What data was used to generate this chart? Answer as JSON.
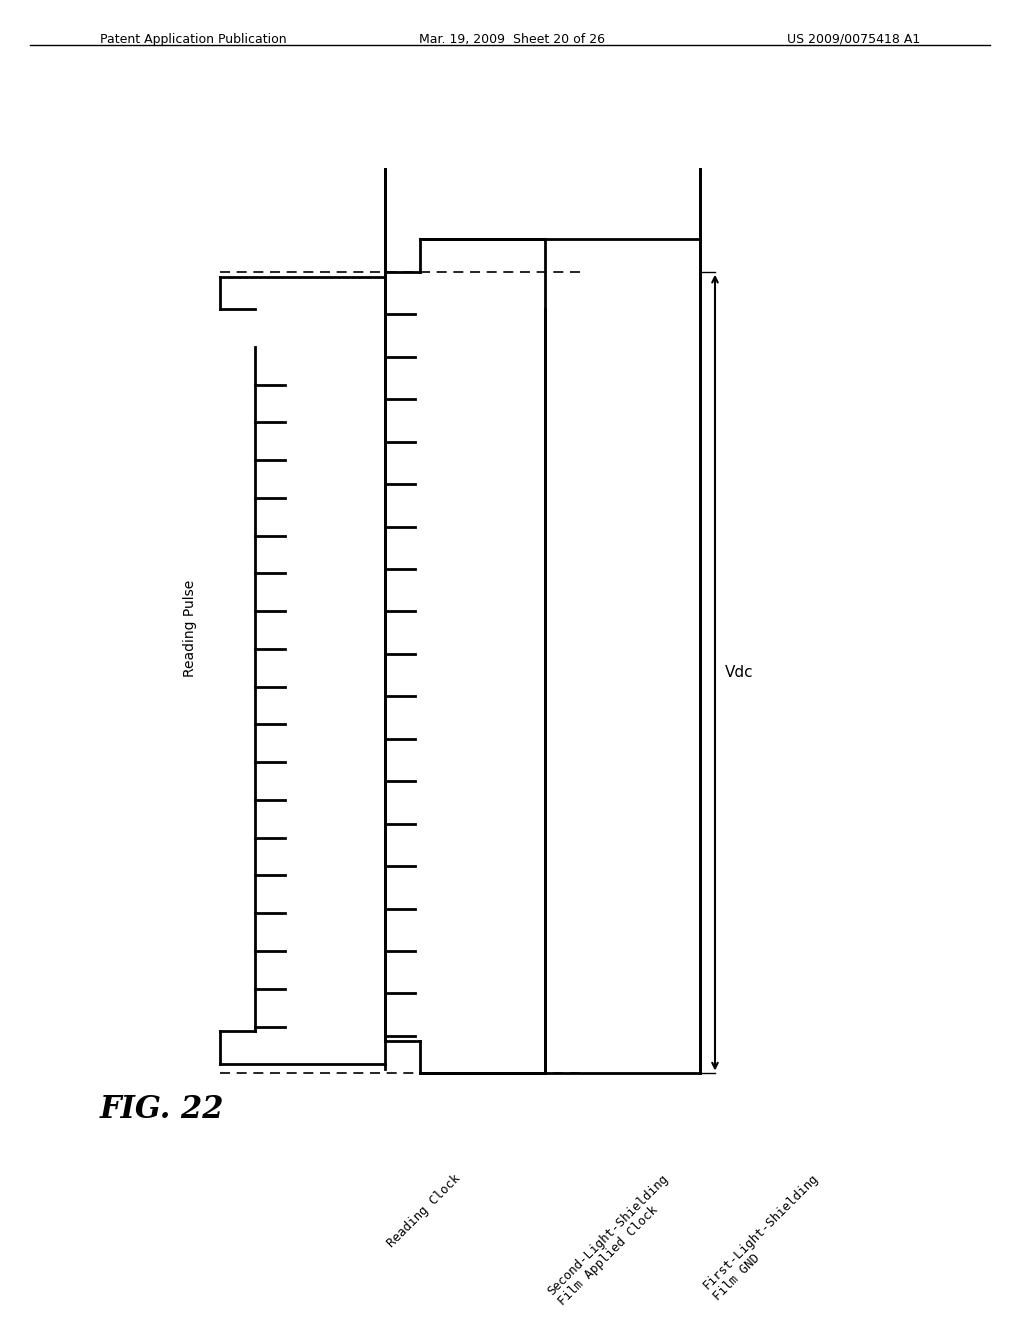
{
  "fig_label": "FIG. 22",
  "header_left": "Patent Application Publication",
  "header_mid": "Mar. 19, 2009  Sheet 20 of 26",
  "header_right": "US 2009/0075418 A1",
  "background_color": "#ffffff",
  "line_color": "#000000",
  "dashed_color": "#000000",
  "signal_labels": [
    "Reading Pulse",
    "Reading Clock",
    "Second-Light-Shielding\nFilm Applied Clock",
    "First-Light-Shielding\nFilm GND"
  ],
  "vdc_label": "Vdc",
  "num_teeth": 18
}
